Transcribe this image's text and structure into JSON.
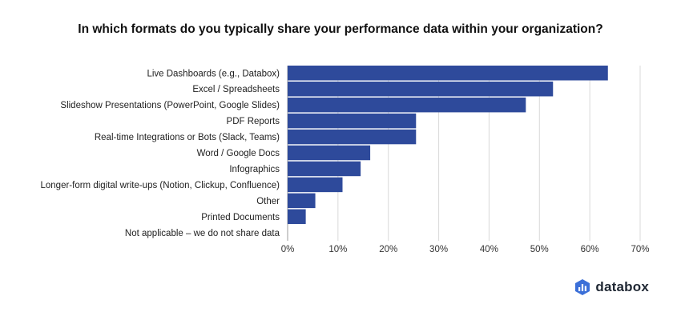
{
  "chart_data": {
    "type": "bar",
    "orientation": "horizontal",
    "title": "In which formats do you typically share your performance data within your organization?",
    "categories": [
      "Live Dashboards (e.g., Databox)",
      "Excel / Spreadsheets",
      "Slideshow Presentations (PowerPoint, Google Slides)",
      "PDF Reports",
      "Real-time Integrations or Bots (Slack, Teams)",
      "Word / Google Docs",
      "Infographics",
      "Longer-form digital write-ups (Notion, Clickup, Confluence)",
      "Other",
      "Printed Documents",
      "Not applicable – we do not share data"
    ],
    "values": [
      63.6,
      52.7,
      47.3,
      25.5,
      25.5,
      16.4,
      14.5,
      10.9,
      5.5,
      3.6,
      0
    ],
    "xlim": [
      0,
      70
    ],
    "xticks": [
      "0%",
      "10%",
      "20%",
      "30%",
      "40%",
      "50%",
      "60%",
      "70%"
    ],
    "xlabel": "",
    "ylabel": "",
    "grid": "vertical",
    "bar_color": "#2e4a9b"
  },
  "branding": {
    "logo_text": "databox",
    "logo_icon": "databox-bars-icon",
    "logo_color": "#1f2733",
    "icon_color": "#3b6fd8"
  }
}
